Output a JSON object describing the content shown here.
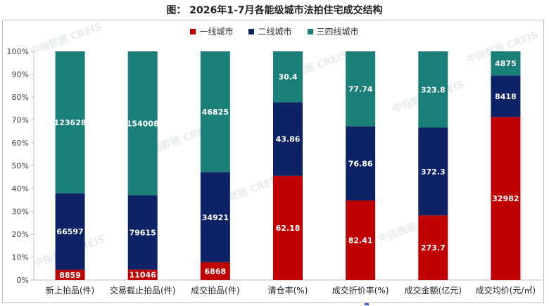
{
  "title": "图：  2026年1-7月各能级城市法拍住宅成交结构",
  "watermark": "中指数据 CREIS",
  "colors": {
    "tier1": "#c00000",
    "tier2": "#0d2366",
    "tier34": "#1b7f79"
  },
  "chart_data": {
    "type": "bar",
    "stacked": "percent",
    "title": "2026年1-7月各能级城市法拍住宅成交结构",
    "categories": [
      "新上拍品(件)",
      "交易截止拍品(件)",
      "成交拍品(件)",
      "清仓率(%)",
      "成交折价率(%)",
      "成交金额(亿元)",
      "成交均价(元/㎡)"
    ],
    "series": [
      {
        "name": "一线城市",
        "values": [
          8859,
          11046,
          6868,
          62.18,
          82.41,
          273.7,
          32982
        ],
        "labels": [
          "8859",
          "11046",
          "6868",
          "62.18",
          "82.41",
          "273.7",
          "32982"
        ]
      },
      {
        "name": "二线城市",
        "values": [
          66597,
          79615,
          34921,
          43.86,
          76.86,
          372.3,
          8418
        ],
        "labels": [
          "66597",
          "79615",
          "34921",
          "43.86",
          "76.86",
          "372.3",
          "8418"
        ]
      },
      {
        "name": "三四线城市",
        "values": [
          123628,
          154008,
          46825,
          30.4,
          77.74,
          323.8,
          4875
        ],
        "labels": [
          "123628",
          "154008",
          "46825",
          "30.4",
          "77.74",
          "323.8",
          "4875"
        ]
      }
    ],
    "y_ticks": [
      "0%",
      "10%",
      "20%",
      "30%",
      "40%",
      "50%",
      "60%",
      "70%",
      "80%",
      "90%",
      "100%"
    ],
    "ylim": [
      0,
      100
    ],
    "legend_position": "top-center",
    "grid": false
  }
}
